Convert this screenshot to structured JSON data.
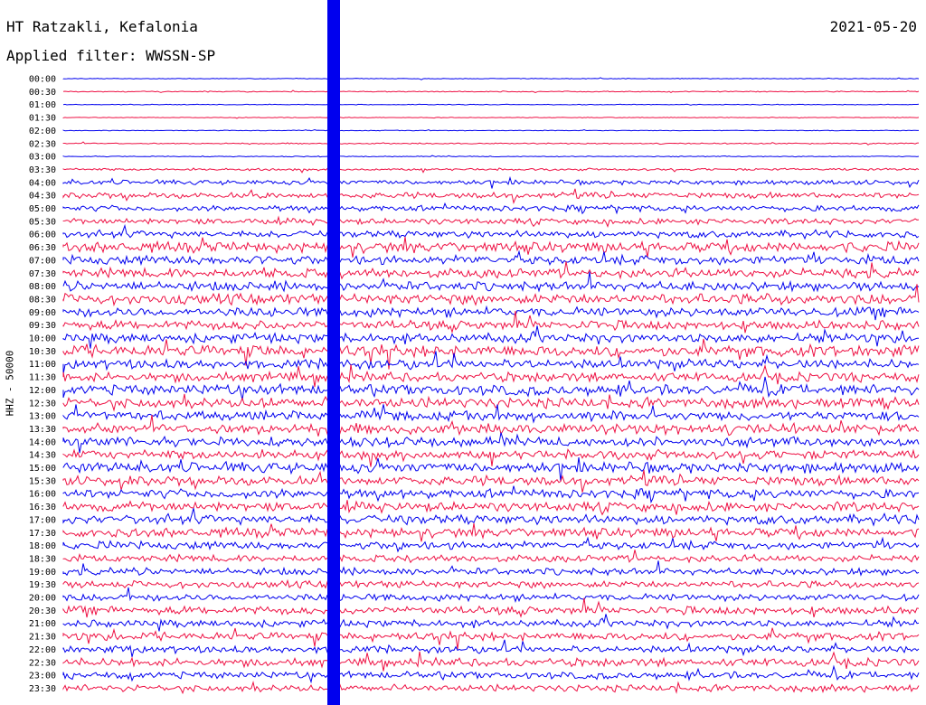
{
  "header": {
    "station": "HT Ratzakli, Kefalonia",
    "date": "2021-05-20",
    "filter": "Applied filter: WWSSN-SP"
  },
  "chart_data": {
    "type": "line",
    "title": "HT Ratzakli, Kefalonia",
    "ylabel": "HHZ - 50000",
    "colors": {
      "even": "#0000ee",
      "odd": "#ee1144"
    },
    "tick_labels": [
      "00:00",
      "00:30",
      "01:00",
      "01:30",
      "02:00",
      "02:30",
      "03:00",
      "03:30",
      "04:00",
      "04:30",
      "05:00",
      "05:30",
      "06:00",
      "06:30",
      "07:00",
      "07:30",
      "08:00",
      "08:30",
      "09:00",
      "09:30",
      "10:00",
      "10:30",
      "11:00",
      "11:30",
      "12:00",
      "12:30",
      "13:00",
      "13:30",
      "14:00",
      "14:30",
      "15:00",
      "15:30",
      "16:00",
      "16:30",
      "17:00",
      "17:30",
      "18:00",
      "18:30",
      "19:00",
      "19:30",
      "20:00",
      "20:30",
      "21:00",
      "21:30",
      "22:00",
      "22:30",
      "23:00",
      "23:30"
    ],
    "noise_level": [
      0.3,
      0.4,
      0.3,
      0.3,
      0.3,
      0.5,
      0.4,
      1.0,
      2.0,
      2.5,
      2.5,
      2.5,
      3.0,
      4.5,
      4.0,
      4.0,
      4.0,
      4.5,
      4.0,
      4.0,
      4.0,
      5.0,
      4.0,
      4.0,
      4.5,
      4.5,
      4.0,
      4.5,
      4.0,
      4.0,
      4.5,
      4.0,
      4.0,
      4.0,
      4.0,
      4.0,
      3.5,
      3.0,
      3.0,
      3.0,
      3.0,
      3.5,
      3.0,
      3.5,
      3.0,
      3.5,
      3.0,
      3.0
    ]
  }
}
